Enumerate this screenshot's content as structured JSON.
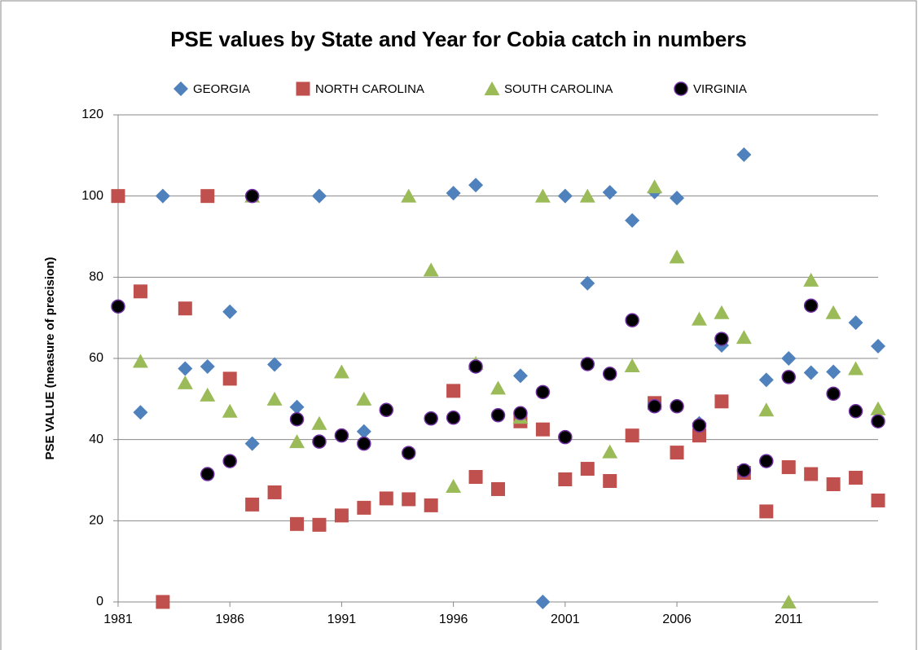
{
  "chart_data": {
    "type": "scatter",
    "title": "PSE values by State and Year for Cobia catch in numbers",
    "ylabel": "PSE VALUE (measure of precision)",
    "x": [
      1981,
      1982,
      1983,
      1984,
      1985,
      1986,
      1987,
      1988,
      1989,
      1990,
      1991,
      1992,
      1993,
      1994,
      1995,
      1996,
      1997,
      1998,
      1999,
      2000,
      2001,
      2002,
      2003,
      2004,
      2005,
      2006,
      2007,
      2008,
      2009,
      2010,
      2011,
      2012,
      2013,
      2014,
      2015
    ],
    "series": [
      {
        "name": "GEORGIA",
        "color": "#4f81bd",
        "marker": "diamond",
        "values": [
          null,
          46.7,
          100,
          57.5,
          58,
          71.5,
          39,
          58.5,
          48,
          100,
          null,
          42,
          null,
          null,
          null,
          100.7,
          102.7,
          null,
          55.7,
          0,
          100,
          78.5,
          100.9,
          94,
          101,
          99.5,
          44,
          63.2,
          110.2,
          54.7,
          60,
          56.5,
          56.7,
          68.8,
          63
        ]
      },
      {
        "name": "NORTH CAROLINA",
        "color": "#c0504d",
        "marker": "square",
        "values": [
          100,
          76.5,
          0,
          72.3,
          100,
          55,
          24,
          27,
          19.2,
          19,
          21.3,
          23.2,
          25.5,
          25.3,
          23.8,
          52,
          30.8,
          27.8,
          44.5,
          42.5,
          30.2,
          32.8,
          29.8,
          41,
          49,
          36.8,
          41,
          49.4,
          31.8,
          22.3,
          33.2,
          31.5,
          29,
          30.6,
          25
        ]
      },
      {
        "name": "SOUTH CAROLINA",
        "color": "#9bbb59",
        "marker": "triangle",
        "values": [
          null,
          59.3,
          null,
          54,
          51,
          47,
          100,
          50,
          39.5,
          44,
          56.7,
          50,
          null,
          100,
          81.8,
          28.5,
          58.8,
          52.7,
          45.5,
          100,
          null,
          100,
          37,
          58.2,
          102.3,
          85,
          69.7,
          71.3,
          65.2,
          47.3,
          0,
          79.3,
          71.3,
          57.5,
          47.6
        ]
      },
      {
        "name": "VIRGINIA",
        "color": "#000000",
        "edgecolor": "#7030a0",
        "marker": "circle",
        "values": [
          72.8,
          null,
          null,
          null,
          31.5,
          34.7,
          100,
          null,
          45,
          39.5,
          41,
          39,
          47.3,
          36.7,
          45.2,
          45.4,
          58,
          46,
          46.5,
          51.7,
          40.6,
          58.6,
          56.2,
          69.4,
          48.2,
          48.2,
          43.5,
          64.8,
          32.4,
          34.7,
          55.4,
          73,
          51.3,
          47,
          44.5
        ]
      }
    ],
    "xlim": [
      1981,
      2015
    ],
    "xticks": [
      1981,
      1986,
      1991,
      1996,
      2001,
      2006,
      2011
    ],
    "ylim": [
      0,
      120
    ],
    "yticks": [
      0,
      20,
      40,
      60,
      80,
      100,
      120
    ],
    "grid": true,
    "legend": "top"
  }
}
